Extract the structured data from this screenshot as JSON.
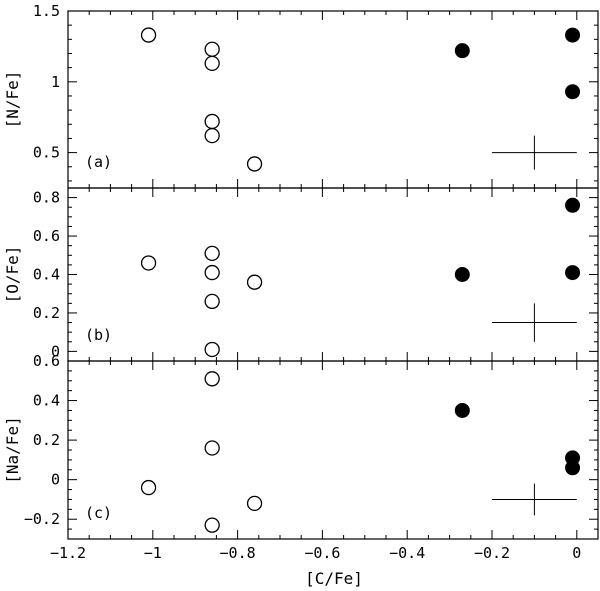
{
  "chart_data": [
    {
      "type": "scatter",
      "panel": "(a)",
      "xlabel": "",
      "ylabel": "[N/Fe]",
      "xlim": [
        -1.2,
        0.05
      ],
      "ylim": [
        0.25,
        1.5
      ],
      "yticks": [
        0.5,
        1,
        1.5
      ],
      "yticklabels": [
        "0.5",
        "1",
        "1.5"
      ],
      "series": [
        {
          "style": "open",
          "points": [
            [
              -1.01,
              1.33
            ],
            [
              -0.86,
              1.23
            ],
            [
              -0.86,
              1.13
            ],
            [
              -0.86,
              0.72
            ],
            [
              -0.86,
              0.62
            ],
            [
              -0.76,
              0.42
            ]
          ]
        },
        {
          "style": "filled",
          "points": [
            [
              -0.27,
              1.22
            ],
            [
              -0.01,
              1.33
            ],
            [
              -0.01,
              0.93
            ]
          ]
        }
      ],
      "error_bar": {
        "x": -0.1,
        "y": 0.5,
        "xerr": 0.1,
        "yerr": 0.12
      }
    },
    {
      "type": "scatter",
      "panel": "(b)",
      "xlabel": "",
      "ylabel": "[O/Fe]",
      "xlim": [
        -1.2,
        0.05
      ],
      "ylim": [
        -0.05,
        0.85
      ],
      "yticks": [
        0,
        0.2,
        0.4,
        0.6,
        0.8
      ],
      "yticklabels": [
        "0",
        "0.2",
        "0.4",
        "0.6",
        "0.8"
      ],
      "series": [
        {
          "style": "open",
          "points": [
            [
              -1.01,
              0.46
            ],
            [
              -0.86,
              0.51
            ],
            [
              -0.86,
              0.41
            ],
            [
              -0.86,
              0.26
            ],
            [
              -0.86,
              0.01
            ],
            [
              -0.76,
              0.36
            ]
          ]
        },
        {
          "style": "filled",
          "points": [
            [
              -0.27,
              0.4
            ],
            [
              -0.01,
              0.76
            ],
            [
              -0.01,
              0.41
            ]
          ]
        }
      ],
      "error_bar": {
        "x": -0.1,
        "y": 0.15,
        "xerr": 0.1,
        "yerr": 0.1
      }
    },
    {
      "type": "scatter",
      "panel": "(c)",
      "xlabel": "[C/Fe]",
      "ylabel": "[Na/Fe]",
      "xlim": [
        -1.2,
        0.05
      ],
      "ylim": [
        -0.3,
        0.6
      ],
      "yticks": [
        -0.2,
        0,
        0.2,
        0.4,
        0.6
      ],
      "yticklabels": [
        "−0.2",
        "0",
        "0.2",
        "0.4",
        "0.6"
      ],
      "xticks": [
        -1.2,
        -1,
        -0.8,
        -0.6,
        -0.4,
        -0.2,
        0
      ],
      "xticklabels": [
        "−1.2",
        "−1",
        "−0.8",
        "−0.6",
        "−0.4",
        "−0.2",
        "0"
      ],
      "series": [
        {
          "style": "open",
          "points": [
            [
              -1.01,
              -0.04
            ],
            [
              -0.86,
              0.51
            ],
            [
              -0.86,
              0.16
            ],
            [
              -0.86,
              -0.23
            ],
            [
              -0.76,
              -0.12
            ]
          ]
        },
        {
          "style": "filled",
          "points": [
            [
              -0.27,
              0.35
            ],
            [
              -0.01,
              0.11
            ],
            [
              -0.01,
              0.06
            ]
          ]
        }
      ],
      "error_bar": {
        "x": -0.1,
        "y": -0.1,
        "xerr": 0.1,
        "yerr": 0.08
      }
    }
  ]
}
